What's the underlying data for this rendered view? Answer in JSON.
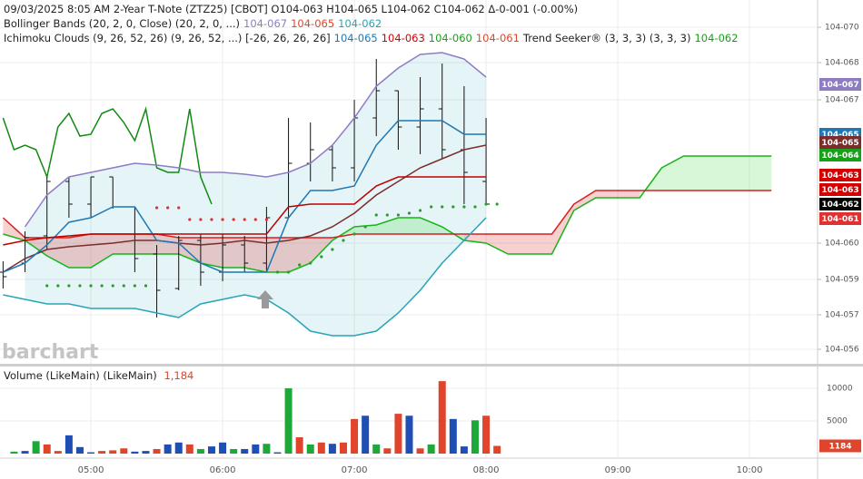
{
  "chart_data": {
    "type": "ohlc",
    "title": "09/03/2025  8:05 AM 2-Year T-Note (ZTZ25) [CBOT] O104-063 H104-065 L104-062 C104-062 Δ-0-001 (-0.00%)",
    "studies": [
      {
        "label": "Bollinger Bands (20, 2, 0, Close)  (20, 2, 0, ...)",
        "values": [
          {
            "text": "104-067",
            "color": "#8e7cc3"
          },
          {
            "text": "104-065",
            "color": "#d9482b"
          },
          {
            "text": "104-062",
            "color": "#26a5b8"
          }
        ]
      },
      {
        "label": "Ichimoku Clouds (9, 26, 52, 26)  (9, 26, 52, ...) [-26, 26, 26, 26]",
        "values": [
          {
            "text": "104-065",
            "color": "#1f77b4"
          },
          {
            "text": "104-063",
            "color": "#d40000"
          },
          {
            "text": "104-060",
            "color": "#18a018"
          },
          {
            "text": "104-061",
            "color": "#d9482b"
          },
          {
            "text": "Trend Seeker® (3, 3, 3)  (3, 3, 3)",
            "color": "#222222"
          },
          {
            "text": "104-062",
            "color": "#18a018"
          }
        ]
      }
    ],
    "watermark": "barchart",
    "xlim": [
      258.6,
      631
    ],
    "xticks": [
      {
        "value": 300,
        "label": "05:00"
      },
      {
        "value": 360,
        "label": "06:00"
      },
      {
        "value": 420,
        "label": "07:00"
      },
      {
        "value": 480,
        "label": "08:00"
      },
      {
        "value": 540,
        "label": "09:00"
      },
      {
        "value": 600,
        "label": "10:00"
      }
    ],
    "ylim": [
      5.52,
      7.12
    ],
    "yticks": [
      {
        "value": 7.0,
        "label": "104-070"
      },
      {
        "value": 6.844,
        "label": "104-068"
      },
      {
        "value": 6.68,
        "label": "104-067"
      },
      {
        "value": 6.048,
        "label": "104-060"
      },
      {
        "value": 5.888,
        "label": "104-059"
      },
      {
        "value": 5.732,
        "label": "104-057"
      },
      {
        "value": 5.58,
        "label": "104-056"
      }
    ],
    "grid": true,
    "bar_color": "#111111",
    "x": [
      260,
      270,
      280,
      290,
      300,
      310,
      320,
      330,
      340,
      350,
      360,
      370,
      380,
      390,
      400,
      410,
      420,
      430,
      440,
      450,
      460,
      470,
      480
    ],
    "open": [
      5.92,
      5.96,
      6.08,
      6.32,
      6.22,
      6.34,
      6.208,
      6.0,
      5.848,
      6.06,
      5.92,
      6.04,
      5.96,
      6.16,
      6.4,
      6.46,
      6.38,
      6.6,
      6.72,
      6.56,
      6.64,
      6.46,
      6.32
    ],
    "high": [
      5.968,
      6.1,
      6.34,
      6.34,
      6.34,
      6.34,
      6.208,
      6.04,
      6.08,
      6.088,
      6.088,
      6.08,
      6.208,
      6.6,
      6.58,
      6.48,
      6.68,
      6.86,
      6.72,
      6.78,
      6.84,
      6.74,
      6.6
    ],
    "low": [
      5.848,
      5.92,
      6.02,
      6.16,
      6.16,
      6.2,
      5.92,
      5.72,
      5.84,
      5.86,
      5.88,
      5.92,
      5.92,
      6.16,
      6.32,
      6.32,
      6.32,
      6.52,
      6.46,
      6.44,
      6.42,
      6.22,
      6.22
    ],
    "close": [
      5.9,
      6.072,
      6.32,
      6.22,
      6.34,
      6.208,
      5.98,
      5.84,
      6.06,
      5.92,
      6.04,
      5.96,
      6.16,
      6.4,
      6.46,
      6.38,
      6.6,
      6.72,
      6.56,
      6.64,
      6.46,
      6.36,
      6.22
    ],
    "band_fill": "rgba(38,165,184,0.12)",
    "indicators": [
      {
        "color": "#8e7cc3",
        "values": [
          null,
          6.12,
          6.26,
          6.34,
          6.36,
          6.38,
          6.4,
          6.392,
          6.38,
          6.36,
          6.36,
          6.352,
          6.34,
          6.36,
          6.4,
          6.48,
          6.6,
          6.74,
          6.82,
          6.88,
          6.888,
          6.86,
          6.78
        ]
      },
      {
        "color": "#26a5b8",
        "values": [
          5.82,
          5.8,
          5.78,
          5.78,
          5.76,
          5.76,
          5.76,
          5.74,
          5.72,
          5.78,
          5.8,
          5.82,
          5.8,
          5.74,
          5.66,
          5.64,
          5.64,
          5.66,
          5.74,
          5.84,
          5.96,
          6.06,
          6.16
        ]
      },
      {
        "color": "#7b2c2c",
        "values": [
          5.92,
          5.98,
          6.02,
          6.032,
          6.04,
          6.048,
          6.06,
          6.06,
          6.048,
          6.04,
          6.048,
          6.06,
          6.048,
          6.06,
          6.08,
          6.12,
          6.18,
          6.26,
          6.32,
          6.38,
          6.42,
          6.46,
          6.48
        ]
      },
      {
        "color": "#1f77b4",
        "values": [
          5.92,
          5.96,
          6.04,
          6.14,
          6.16,
          6.208,
          6.208,
          6.06,
          6.048,
          5.96,
          5.92,
          5.92,
          5.92,
          6.16,
          6.28,
          6.28,
          6.3,
          6.48,
          6.588,
          6.588,
          6.588,
          6.528,
          6.528
        ]
      },
      {
        "color": "#c00000",
        "values": [
          6.04,
          6.06,
          6.072,
          6.08,
          6.088,
          6.088,
          6.088,
          6.088,
          6.088,
          6.088,
          6.088,
          6.088,
          6.088,
          6.208,
          6.22,
          6.22,
          6.22,
          6.3,
          6.34,
          6.34,
          6.34,
          6.34,
          6.34
        ]
      }
    ],
    "cloud": {
      "x": [
        260,
        270,
        280,
        290,
        300,
        310,
        320,
        330,
        340,
        350,
        360,
        370,
        380,
        390,
        400,
        410,
        420,
        430,
        440,
        450,
        460,
        470,
        480,
        490,
        500,
        510,
        520,
        530,
        540,
        550,
        560,
        570,
        580,
        590,
        600,
        610
      ],
      "span_a": [
        6.088,
        6.06,
        5.992,
        5.94,
        5.94,
        6.0,
        6.0,
        6.0,
        6.0,
        5.96,
        5.94,
        5.94,
        5.92,
        5.92,
        5.96,
        6.06,
        6.12,
        6.128,
        6.16,
        6.16,
        6.12,
        6.06,
        6.048,
        6.0,
        6.0,
        6.0,
        6.192,
        6.248,
        6.248,
        6.248,
        6.38,
        6.432,
        6.432,
        6.432,
        6.432,
        6.432
      ],
      "span_b": [
        6.16,
        6.072,
        6.072,
        6.072,
        6.088,
        6.088,
        6.088,
        6.088,
        6.072,
        6.072,
        6.072,
        6.072,
        6.072,
        6.072,
        6.072,
        6.072,
        6.088,
        6.088,
        6.088,
        6.088,
        6.088,
        6.088,
        6.088,
        6.088,
        6.088,
        6.088,
        6.22,
        6.28,
        6.28,
        6.28,
        6.28,
        6.28,
        6.28,
        6.28,
        6.28,
        6.28
      ],
      "color_a": "#18b418",
      "color_b": "#d42020",
      "fill_up": "rgba(40,210,40,0.18)",
      "fill_down": "rgba(220,40,40,0.22)"
    },
    "lagging": {
      "color": "#128a12",
      "x": [
        260,
        265,
        270,
        275,
        280,
        285,
        290,
        295,
        300,
        305,
        310,
        315,
        320,
        325,
        330,
        335,
        340,
        345,
        350,
        355
      ],
      "values": [
        6.6,
        6.46,
        6.48,
        6.46,
        6.34,
        6.56,
        6.62,
        6.52,
        6.528,
        6.62,
        6.64,
        6.58,
        6.5,
        6.64,
        6.38,
        6.36,
        6.36,
        6.64,
        6.34,
        6.22
      ]
    },
    "trend_dots": {
      "x": [
        280,
        285,
        290,
        295,
        300,
        305,
        310,
        315,
        320,
        325,
        330,
        335,
        340,
        345,
        350,
        355,
        360,
        365,
        370,
        375,
        380,
        385,
        390,
        395,
        400,
        405,
        410,
        415,
        420,
        425,
        430,
        435,
        440,
        445,
        450,
        455,
        460,
        465,
        470,
        475,
        480,
        485
      ],
      "values": [
        5.86,
        5.86,
        5.86,
        5.86,
        5.86,
        5.86,
        5.86,
        5.86,
        5.86,
        5.86,
        6.204,
        6.204,
        6.204,
        6.152,
        6.152,
        6.152,
        6.152,
        6.152,
        6.152,
        6.152,
        6.152,
        5.92,
        5.92,
        5.952,
        5.96,
        5.988,
        6.02,
        6.06,
        6.088,
        6.12,
        6.172,
        6.172,
        6.172,
        6.18,
        6.192,
        6.208,
        6.208,
        6.208,
        6.208,
        6.208,
        6.22,
        6.22
      ],
      "colors": [
        "#2a9d2a",
        "#2a9d2a",
        "#2a9d2a",
        "#2a9d2a",
        "#2a9d2a",
        "#2a9d2a",
        "#2a9d2a",
        "#2a9d2a",
        "#2a9d2a",
        "#2a9d2a",
        "#e03030",
        "#e03030",
        "#e03030",
        "#e03030",
        "#e03030",
        "#e03030",
        "#e03030",
        "#e03030",
        "#e03030",
        "#e03030",
        "#e03030",
        "#2a9d2a",
        "#2a9d2a",
        "#2a9d2a",
        "#2a9d2a",
        "#2a9d2a",
        "#2a9d2a",
        "#2a9d2a",
        "#2a9d2a",
        "#2a9d2a",
        "#2a9d2a",
        "#2a9d2a",
        "#2a9d2a",
        "#2a9d2a",
        "#2a9d2a",
        "#2a9d2a",
        "#2a9d2a",
        "#2a9d2a",
        "#2a9d2a",
        "#2a9d2a",
        "#2a9d2a",
        "#2a9d2a"
      ]
    },
    "price_markers": [
      {
        "value": 6.748,
        "label": "104-067",
        "color": "#8e7cc3"
      },
      {
        "value": 6.528,
        "label": "104-065",
        "color": "#1f77b4"
      },
      {
        "value": 6.492,
        "label": "104-065",
        "color": "#7b2c2c"
      },
      {
        "value": 6.436,
        "label": "104-064",
        "color": "#18a018"
      },
      {
        "value": 6.348,
        "label": "104-063",
        "color": "#d40000"
      },
      {
        "value": 6.284,
        "label": "104-063",
        "color": "#d40000"
      },
      {
        "value": 6.22,
        "label": "104-062",
        "color": "#000000"
      },
      {
        "value": 6.156,
        "label": "104-061",
        "color": "#e03030"
      }
    ],
    "volume": {
      "type": "bar",
      "title": "Volume (LikeMain)  (LikeMain)",
      "title_value": "1,184",
      "title_value_color": "#d9482b",
      "ylim": [
        0,
        13200
      ],
      "yticks": [
        5000,
        10000
      ],
      "marker_color": "#e0452c",
      "x": [
        265,
        270,
        275,
        280,
        285,
        290,
        295,
        300,
        305,
        310,
        315,
        320,
        325,
        330,
        335,
        340,
        345,
        350,
        355,
        360,
        365,
        370,
        375,
        380,
        385,
        390,
        395,
        400,
        405,
        410,
        415,
        420,
        425,
        430,
        435,
        440,
        445,
        450,
        455,
        460,
        465,
        470,
        475,
        480,
        485
      ],
      "values": [
        300,
        400,
        1900,
        1400,
        400,
        2800,
        1000,
        200,
        400,
        500,
        800,
        300,
        400,
        700,
        1400,
        1700,
        1400,
        700,
        1100,
        1700,
        700,
        700,
        1400,
        1500,
        200,
        10000,
        2500,
        1400,
        1700,
        1500,
        1700,
        5300,
        5800,
        1400,
        800,
        6100,
        5800,
        800,
        1400,
        11100,
        5300,
        1100,
        5100,
        5800,
        1184
      ],
      "colors": [
        "#1fa83a",
        "#1f4fb5",
        "#1fa83a",
        "#e0452c",
        "#e0452c",
        "#1f4fb5",
        "#1f4fb5",
        "#1f4fb5",
        "#e0452c",
        "#e0452c",
        "#e0452c",
        "#1f4fb5",
        "#1f4fb5",
        "#e0452c",
        "#1f4fb5",
        "#1f4fb5",
        "#e0452c",
        "#1fa83a",
        "#1f4fb5",
        "#1f4fb5",
        "#1fa83a",
        "#1f4fb5",
        "#1f4fb5",
        "#1fa83a",
        "#1f4fb5",
        "#1fa83a",
        "#e0452c",
        "#1fa83a",
        "#e0452c",
        "#1f4fb5",
        "#e0452c",
        "#e0452c",
        "#1f4fb5",
        "#1fa83a",
        "#e0452c",
        "#e0452c",
        "#1f4fb5",
        "#e0452c",
        "#1fa83a",
        "#e0452c",
        "#1f4fb5",
        "#1f4fb5",
        "#1fa83a",
        "#e0452c",
        "#e0452c"
      ]
    }
  }
}
